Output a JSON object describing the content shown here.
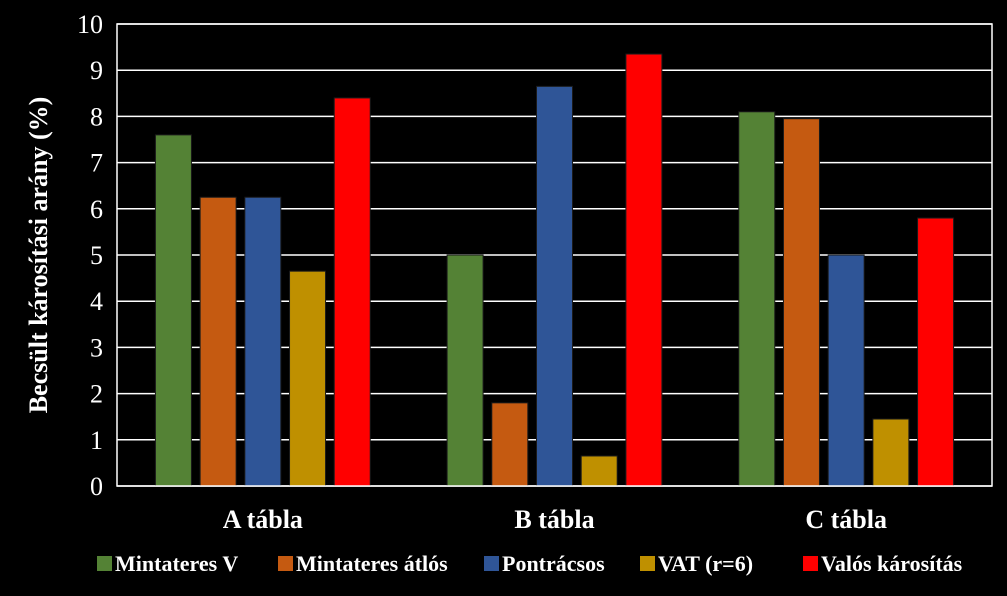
{
  "chart_data": {
    "type": "bar",
    "ylabel": "Becsült károsítási arány (%)",
    "xlabel": "",
    "ylim": [
      0,
      10
    ],
    "yticks": [
      0,
      1,
      2,
      3,
      4,
      5,
      6,
      7,
      8,
      9,
      10
    ],
    "grid": true,
    "legend_position": "bottom",
    "categories": [
      "A tábla",
      "B tábla",
      "C tábla"
    ],
    "series": [
      {
        "name": "Mintateres V",
        "color": "#548235",
        "values": [
          7.6,
          5.0,
          8.1
        ]
      },
      {
        "name": "Mintateres átlós",
        "color": "#c55a11",
        "values": [
          6.25,
          1.8,
          7.95
        ]
      },
      {
        "name": "Pontrácsos",
        "color": "#2f5597",
        "values": [
          6.25,
          8.65,
          5.0
        ]
      },
      {
        "name": "VAT (r=6)",
        "color": "#bf9000",
        "values": [
          4.65,
          0.65,
          1.45
        ]
      },
      {
        "name": "Valós károsítás",
        "color": "#ff0000",
        "values": [
          8.4,
          9.35,
          5.8
        ]
      }
    ]
  }
}
